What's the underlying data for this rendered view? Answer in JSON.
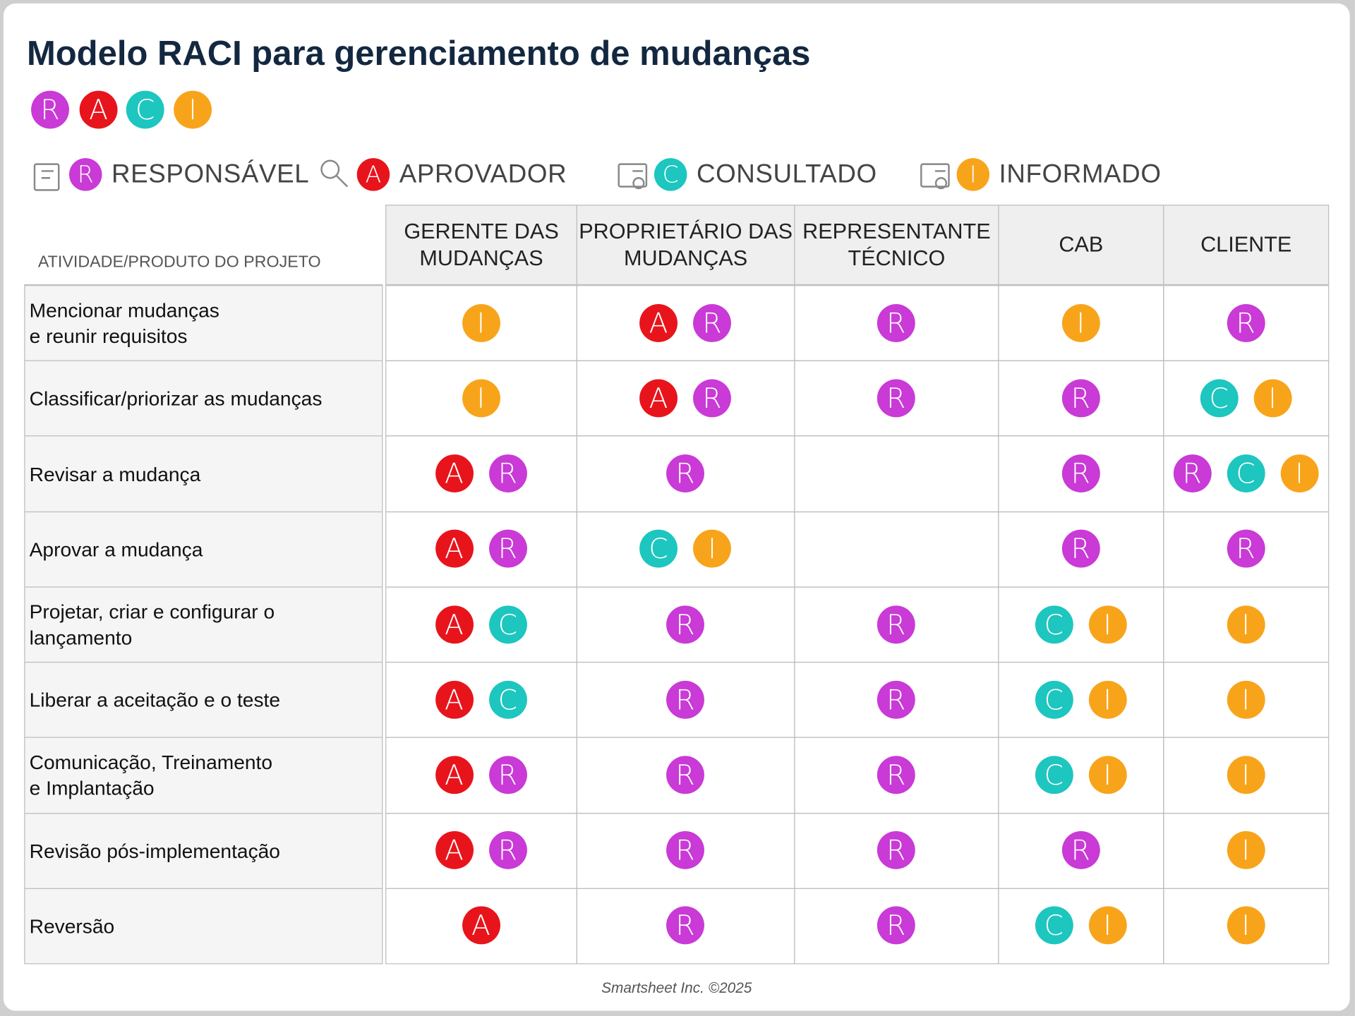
{
  "header": {
    "title": "Modelo RACI para gerenciamento de mudanças",
    "badges": [
      "R",
      "A",
      "C",
      "I"
    ]
  },
  "badge_colors": {
    "R": "#c93ad6",
    "A": "#e8141c",
    "C": "#1dc6bf",
    "I": "#f8a41b"
  },
  "legend": [
    {
      "letter": "R",
      "label": "RESPONSÁVEL"
    },
    {
      "letter": "A",
      "label": "APROVADOR"
    },
    {
      "letter": "C",
      "label": "CONSULTADO"
    },
    {
      "letter": "I",
      "label": "INFORMADO"
    }
  ],
  "table": {
    "corner": "ATIVIDADE/PRODUTO DO PROJETO",
    "columns": [
      [
        "GERENTE DAS",
        "MUDANÇAS"
      ],
      [
        "PROPRIETÁRIO DAS",
        "MUDANÇAS"
      ],
      [
        "REPRESENTANTE",
        "TÉCNICO"
      ],
      [
        "CAB"
      ],
      [
        "CLIENTE"
      ]
    ],
    "rows": [
      {
        "activity": [
          "Mencionar mudanças",
          "e reunir requisitos"
        ],
        "cells": [
          [
            "I"
          ],
          [
            "A",
            "R"
          ],
          [
            "R"
          ],
          [
            "I"
          ],
          [
            "R"
          ]
        ]
      },
      {
        "activity": [
          "Classificar/priorizar as mudanças"
        ],
        "cells": [
          [
            "I"
          ],
          [
            "A",
            "R"
          ],
          [
            "R"
          ],
          [
            "R"
          ],
          [
            "C",
            "I"
          ]
        ]
      },
      {
        "activity": [
          "Revisar a mudança"
        ],
        "cells": [
          [
            "A",
            "R"
          ],
          [
            "R"
          ],
          [],
          [
            "R"
          ],
          [
            "R",
            "C",
            "I"
          ]
        ]
      },
      {
        "activity": [
          "Aprovar a mudança"
        ],
        "cells": [
          [
            "A",
            "R"
          ],
          [
            "C",
            "I"
          ],
          [],
          [
            "R"
          ],
          [
            "R"
          ]
        ]
      },
      {
        "activity": [
          "Projetar, criar e configurar o",
          "lançamento"
        ],
        "cells": [
          [
            "A",
            "C"
          ],
          [
            "R"
          ],
          [
            "R"
          ],
          [
            "C",
            "I"
          ],
          [
            "I"
          ]
        ]
      },
      {
        "activity": [
          "Liberar a aceitação e o teste"
        ],
        "cells": [
          [
            "A",
            "C"
          ],
          [
            "R"
          ],
          [
            "R"
          ],
          [
            "C",
            "I"
          ],
          [
            "I"
          ]
        ]
      },
      {
        "activity": [
          "Comunicação, Treinamento",
          "e Implantação"
        ],
        "cells": [
          [
            "A",
            "R"
          ],
          [
            "R"
          ],
          [
            "R"
          ],
          [
            "C",
            "I"
          ],
          [
            "I"
          ]
        ]
      },
      {
        "activity": [
          "Revisão pós-implementação"
        ],
        "cells": [
          [
            "A",
            "R"
          ],
          [
            "R"
          ],
          [
            "R"
          ],
          [
            "R"
          ],
          [
            "I"
          ]
        ]
      },
      {
        "activity": [
          "Reversão"
        ],
        "cells": [
          [
            "A"
          ],
          [
            "R"
          ],
          [
            "R"
          ],
          [
            "C",
            "I"
          ],
          [
            "I"
          ]
        ]
      }
    ]
  },
  "footer": "Smartsheet Inc. ©2025"
}
